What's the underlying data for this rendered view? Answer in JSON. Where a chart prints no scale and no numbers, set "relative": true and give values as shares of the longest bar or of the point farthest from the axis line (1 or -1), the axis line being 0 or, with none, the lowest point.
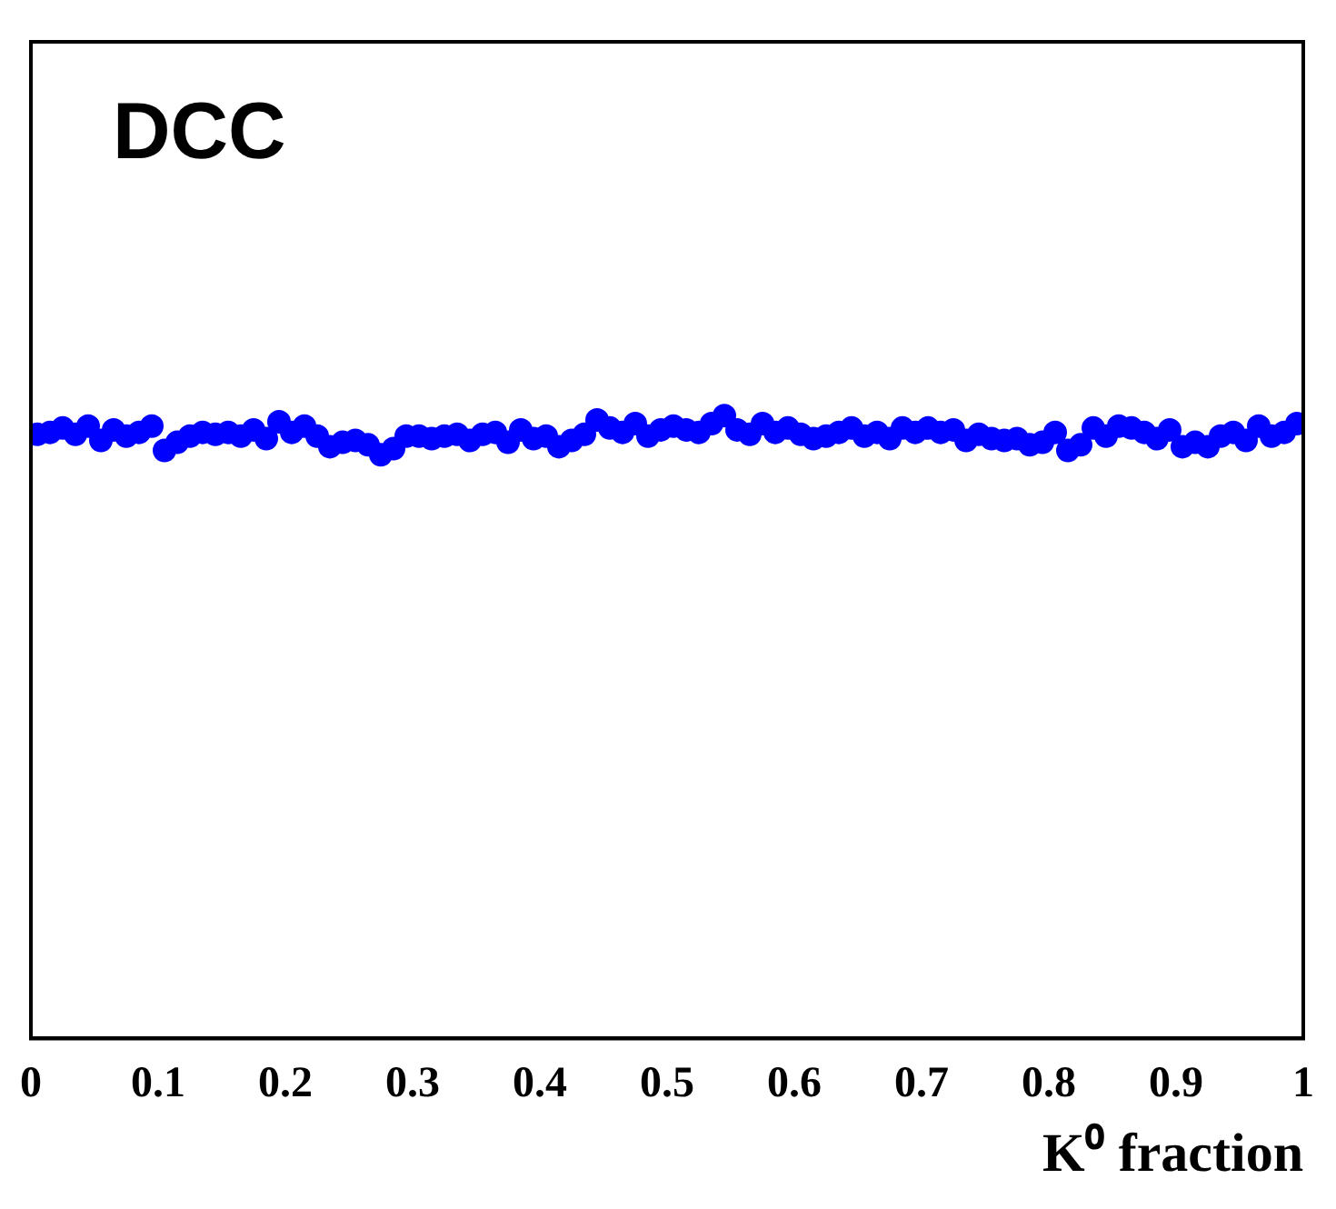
{
  "chart_data": {
    "type": "scatter",
    "xlabel": "K⁰ fraction",
    "annotations": [
      "DCC"
    ],
    "relative": true,
    "marker": "circle",
    "grid": false,
    "legend": false,
    "x": [
      0.005,
      0.015,
      0.025,
      0.035,
      0.045,
      0.055,
      0.065,
      0.075,
      0.085,
      0.095,
      0.105,
      0.115,
      0.125,
      0.135,
      0.145,
      0.155,
      0.165,
      0.175,
      0.185,
      0.195,
      0.205,
      0.215,
      0.225,
      0.235,
      0.245,
      0.255,
      0.265,
      0.275,
      0.285,
      0.295,
      0.305,
      0.315,
      0.325,
      0.335,
      0.345,
      0.355,
      0.365,
      0.375,
      0.385,
      0.395,
      0.405,
      0.415,
      0.425,
      0.435,
      0.445,
      0.455,
      0.465,
      0.475,
      0.485,
      0.495,
      0.505,
      0.515,
      0.525,
      0.535,
      0.545,
      0.555,
      0.565,
      0.575,
      0.585,
      0.595,
      0.605,
      0.615,
      0.625,
      0.635,
      0.645,
      0.655,
      0.665,
      0.675,
      0.685,
      0.695,
      0.705,
      0.715,
      0.725,
      0.735,
      0.745,
      0.755,
      0.765,
      0.775,
      0.785,
      0.795,
      0.805,
      0.815,
      0.825,
      0.835,
      0.845,
      0.855,
      0.865,
      0.875,
      0.885,
      0.895,
      0.905,
      0.915,
      0.925,
      0.935,
      0.945,
      0.955,
      0.965,
      0.975,
      0.985,
      0.995
    ],
    "series": [
      {
        "color": "#0000ff",
        "values": [
          0.97,
          0.973,
          0.98,
          0.97,
          0.983,
          0.96,
          0.977,
          0.967,
          0.973,
          0.983,
          0.944,
          0.957,
          0.967,
          0.973,
          0.97,
          0.973,
          0.967,
          0.977,
          0.963,
          0.99,
          0.973,
          0.983,
          0.967,
          0.95,
          0.957,
          0.96,
          0.953,
          0.937,
          0.947,
          0.967,
          0.967,
          0.963,
          0.967,
          0.97,
          0.96,
          0.97,
          0.973,
          0.957,
          0.977,
          0.963,
          0.967,
          0.95,
          0.96,
          0.97,
          0.993,
          0.98,
          0.973,
          0.987,
          0.967,
          0.977,
          0.983,
          0.977,
          0.973,
          0.987,
          1,
          0.977,
          0.97,
          0.987,
          0.973,
          0.98,
          0.97,
          0.963,
          0.967,
          0.973,
          0.98,
          0.967,
          0.973,
          0.963,
          0.98,
          0.973,
          0.98,
          0.973,
          0.977,
          0.96,
          0.97,
          0.963,
          0.96,
          0.963,
          0.953,
          0.957,
          0.973,
          0.944,
          0.953,
          0.98,
          0.967,
          0.983,
          0.98,
          0.973,
          0.963,
          0.977,
          0.95,
          0.957,
          0.95,
          0.967,
          0.973,
          0.96,
          0.983,
          0.967,
          0.973,
          0.987
        ]
      }
    ],
    "xlim": [
      0,
      1
    ],
    "xticks": [
      0,
      0.1,
      0.2,
      0.3,
      0.4,
      0.5,
      0.6,
      0.7,
      0.8,
      0.9,
      1
    ]
  }
}
